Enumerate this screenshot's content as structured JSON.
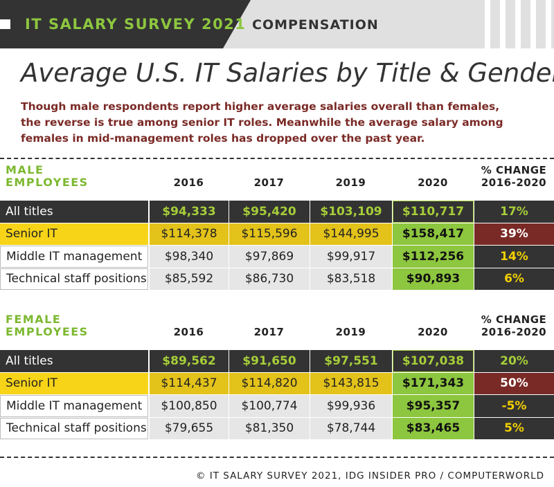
{
  "header": {
    "brand": "IT SALARY SURVEY 2021",
    "section": "COMPENSATION"
  },
  "title": "Average U.S. IT Salaries by Title & Gender",
  "subtitle_lines": [
    "Though male respondents report higher average salaries overall than females,",
    "the reverse is true among senior IT roles. Meanwhile the average salary among",
    "females in mid-management roles has dropped over the past year."
  ],
  "tables": [
    {
      "group_lines": [
        "MALE",
        "EMPLOYEES"
      ],
      "columns": [
        "2016",
        "2017",
        "2019",
        "2020"
      ],
      "change_header_lines": [
        "% CHANGE",
        "2016-2020"
      ],
      "rows": [
        {
          "label": "All titles",
          "values": [
            "$94,333",
            "$95,420",
            "$103,109",
            "$110,717"
          ],
          "change": "17%"
        },
        {
          "label": "Senior IT",
          "values": [
            "$114,378",
            "$115,596",
            "$144,995",
            "$158,417"
          ],
          "change": "39%"
        },
        {
          "label": "Middle IT management",
          "values": [
            "$98,340",
            "$97,869",
            "$99,917",
            "$112,256"
          ],
          "change": "14%"
        },
        {
          "label": "Technical staff positions",
          "values": [
            "$85,592",
            "$86,730",
            "$83,518",
            "$90,893"
          ],
          "change": "6%"
        }
      ]
    },
    {
      "group_lines": [
        "FEMALE",
        "EMPLOYEES"
      ],
      "columns": [
        "2016",
        "2017",
        "2019",
        "2020"
      ],
      "change_header_lines": [
        "% CHANGE",
        "2016-2020"
      ],
      "rows": [
        {
          "label": "All titles",
          "values": [
            "$89,562",
            "$91,650",
            "$97,551",
            "$107,038"
          ],
          "change": "20%"
        },
        {
          "label": "Senior IT",
          "values": [
            "$114,437",
            "$114,820",
            "$143,815",
            "$171,343"
          ],
          "change": "50%"
        },
        {
          "label": "Middle IT management",
          "values": [
            "$100,850",
            "$100,774",
            "$99,936",
            "$95,357"
          ],
          "change": "-5%"
        },
        {
          "label": "Technical staff positions",
          "values": [
            "$79,655",
            "$81,350",
            "$78,744",
            "$83,465"
          ],
          "change": "5%"
        }
      ]
    }
  ],
  "footer": "© IT SALARY SURVEY 2021, IDG INSIDER PRO / COMPUTERWORLD"
}
